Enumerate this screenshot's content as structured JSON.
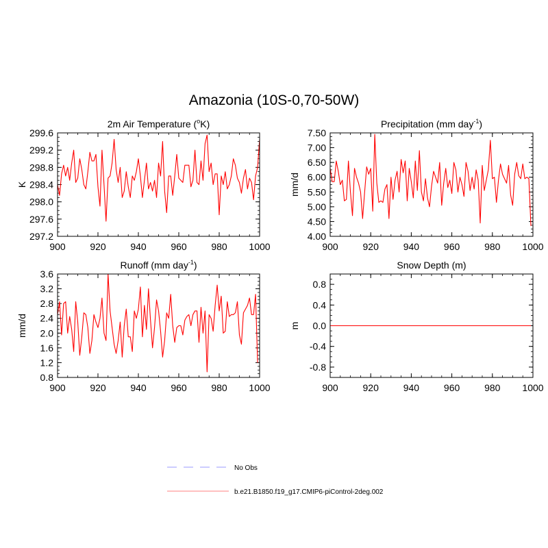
{
  "figure": {
    "title": "Amazonia (10S-0,70-50W)"
  },
  "legend": {
    "items": [
      {
        "label": "No Obs",
        "color": "#9999ff",
        "dashed": true
      },
      {
        "label": "b.e21.B1850.f19_g17.CMIP6-piControl-2deg.002",
        "color": "#ff0000",
        "dashed": false
      }
    ]
  },
  "chart_data": [
    {
      "type": "line",
      "id": "t2m",
      "title": "2m Air Temperature (°K)",
      "title_base": "2m Air Temperature (",
      "title_sup": "o",
      "title_tail": "K)",
      "xlabel": "",
      "ylabel": "K",
      "xlim": [
        900,
        1000
      ],
      "ylim": [
        297.2,
        299.6
      ],
      "xticks": [
        900,
        920,
        940,
        960,
        980,
        1000
      ],
      "yticks": [
        297.2,
        297.6,
        298.0,
        298.4,
        298.8,
        299.2,
        299.6
      ],
      "ytick_labels": [
        "297.2",
        "297.6",
        "298.0",
        "298.4",
        "298.8",
        "299.2",
        "299.6"
      ],
      "series": [
        {
          "name": "b.e21.B1850.f19_g17.CMIP6-piControl-2deg.002",
          "color": "#ff0000",
          "x_start": 900,
          "x_step": 1,
          "values": [
            298.4,
            298.15,
            298.65,
            298.85,
            298.6,
            298.8,
            298.5,
            298.9,
            299.2,
            298.45,
            298.55,
            299.0,
            298.75,
            298.4,
            298.3,
            298.7,
            299.15,
            298.95,
            298.95,
            299.1,
            298.35,
            297.9,
            299.2,
            298.4,
            297.55,
            298.55,
            298.6,
            298.9,
            299.45,
            298.75,
            298.45,
            298.8,
            298.1,
            298.25,
            298.7,
            298.35,
            298.1,
            298.6,
            298.5,
            298.7,
            299.0,
            298.6,
            298.1,
            298.5,
            298.9,
            298.3,
            298.45,
            298.25,
            298.5,
            298.1,
            298.9,
            298.6,
            299.4,
            298.25,
            297.75,
            298.6,
            298.6,
            298.15,
            298.6,
            299.1,
            298.55,
            298.5,
            298.45,
            298.85,
            298.85,
            298.85,
            298.35,
            298.5,
            299.2,
            298.45,
            298.4,
            298.95,
            298.5,
            299.35,
            299.55,
            298.7,
            298.9,
            298.4,
            298.65,
            298.65,
            297.7,
            298.6,
            298.4,
            298.7,
            298.3,
            298.4,
            298.6,
            299.0,
            298.85,
            298.55,
            298.45,
            298.2,
            298.55,
            298.75,
            298.3,
            298.55,
            298.45,
            298.05,
            298.6,
            298.8,
            299.45
          ]
        }
      ]
    },
    {
      "type": "line",
      "id": "precip",
      "title": "Precipitation (mm day-1)",
      "title_base": "Precipitation (mm day",
      "title_sup": "-1",
      "title_tail": ")",
      "xlabel": "",
      "ylabel": "mm/d",
      "xlim": [
        900,
        1000
      ],
      "ylim": [
        4.0,
        7.5
      ],
      "xticks": [
        900,
        920,
        940,
        960,
        980,
        1000
      ],
      "yticks": [
        4.0,
        4.5,
        5.0,
        5.5,
        6.0,
        6.5,
        7.0,
        7.5
      ],
      "ytick_labels": [
        "4.00",
        "4.50",
        "5.00",
        "5.50",
        "6.00",
        "6.50",
        "7.00",
        "7.50"
      ],
      "series": [
        {
          "name": "b.e21.B1850.f19_g17.CMIP6-piControl-2deg.002",
          "color": "#ff0000",
          "x_start": 900,
          "x_step": 1,
          "values": [
            6.3,
            5.85,
            5.85,
            6.55,
            6.2,
            5.75,
            5.9,
            5.2,
            5.25,
            6.55,
            5.5,
            4.7,
            6.3,
            6.0,
            5.8,
            5.5,
            4.6,
            5.5,
            6.35,
            6.1,
            6.3,
            4.85,
            7.45,
            5.8,
            5.15,
            5.2,
            5.15,
            5.6,
            5.75,
            4.6,
            6.0,
            5.25,
            5.9,
            6.2,
            5.5,
            6.6,
            6.15,
            6.55,
            5.2,
            6.3,
            5.85,
            5.3,
            6.55,
            5.55,
            6.9,
            5.5,
            5.2,
            5.95,
            5.3,
            5.0,
            5.7,
            6.2,
            6.0,
            5.8,
            6.5,
            5.05,
            5.8,
            6.3,
            5.65,
            5.9,
            5.45,
            6.5,
            6.25,
            5.5,
            6.0,
            5.75,
            5.35,
            6.5,
            6.2,
            5.55,
            6.0,
            5.6,
            6.25,
            5.9,
            4.45,
            6.4,
            5.55,
            5.9,
            6.25,
            7.25,
            5.95,
            6.0,
            5.15,
            5.9,
            6.45,
            6.1,
            5.95,
            5.8,
            6.4,
            5.4,
            5.05,
            6.1,
            6.5,
            6.05,
            5.95,
            6.45,
            5.95,
            6.0,
            5.95,
            4.35
          ]
        }
      ]
    },
    {
      "type": "line",
      "id": "runoff",
      "title": "Runoff (mm day-1)",
      "title_base": "Runoff (mm day",
      "title_sup": "-1",
      "title_tail": ")",
      "xlabel": "",
      "ylabel": "mm/d",
      "xlim": [
        900,
        1000
      ],
      "ylim": [
        0.8,
        3.6
      ],
      "xticks": [
        900,
        920,
        940,
        960,
        980,
        1000
      ],
      "yticks": [
        0.8,
        1.2,
        1.6,
        2.0,
        2.4,
        2.8,
        3.2,
        3.6
      ],
      "ytick_labels": [
        "0.8",
        "1.2",
        "1.6",
        "2.0",
        "2.4",
        "2.8",
        "3.2",
        "3.6"
      ],
      "series": [
        {
          "name": "b.e21.B1850.f19_g17.CMIP6-piControl-2deg.002",
          "color": "#ff0000",
          "x_start": 900,
          "x_step": 1,
          "values": [
            2.5,
            2.85,
            1.95,
            2.8,
            2.85,
            2.0,
            2.45,
            2.1,
            1.5,
            2.85,
            2.3,
            1.4,
            1.9,
            2.55,
            2.5,
            2.15,
            1.45,
            1.8,
            2.5,
            2.3,
            2.15,
            2.4,
            2.95,
            2.0,
            1.8,
            3.6,
            2.6,
            2.15,
            1.7,
            1.45,
            1.8,
            2.3,
            1.35,
            2.2,
            2.65,
            1.9,
            1.9,
            1.5,
            2.6,
            2.4,
            2.65,
            3.25,
            1.9,
            2.75,
            2.1,
            3.2,
            2.35,
            1.6,
            2.15,
            2.9,
            2.6,
            2.05,
            1.35,
            1.8,
            2.55,
            2.4,
            3.05,
            2.2,
            1.75,
            2.15,
            2.2,
            2.2,
            1.95,
            2.35,
            2.45,
            2.5,
            2.2,
            2.5,
            2.6,
            2.6,
            1.75,
            2.7,
            2.0,
            2.6,
            0.95,
            2.5,
            2.4,
            2.05,
            2.75,
            3.3,
            2.6,
            3.0,
            2.0,
            2.05,
            2.85,
            2.45,
            2.5,
            2.5,
            2.55,
            2.85,
            1.95,
            1.7,
            2.55,
            2.65,
            2.75,
            2.95,
            2.5,
            2.5,
            3.05,
            1.2
          ]
        }
      ]
    },
    {
      "type": "line",
      "id": "snow",
      "title": "Snow Depth (m)",
      "title_base": "Snow Depth (m)",
      "title_sup": "",
      "title_tail": "",
      "xlabel": "",
      "ylabel": "m",
      "xlim": [
        900,
        1000
      ],
      "ylim": [
        -1.0,
        1.0
      ],
      "xticks": [
        900,
        920,
        940,
        960,
        980,
        1000
      ],
      "yticks": [
        -0.8,
        -0.4,
        0.0,
        0.4,
        0.8
      ],
      "ytick_labels": [
        "-0.8",
        "-0.4",
        "0.0",
        "0.4",
        "0.8"
      ],
      "series": [
        {
          "name": "b.e21.B1850.f19_g17.CMIP6-piControl-2deg.002",
          "color": "#ff0000",
          "x": [
            900,
            999
          ],
          "values": [
            0.0,
            0.0
          ]
        }
      ]
    }
  ]
}
